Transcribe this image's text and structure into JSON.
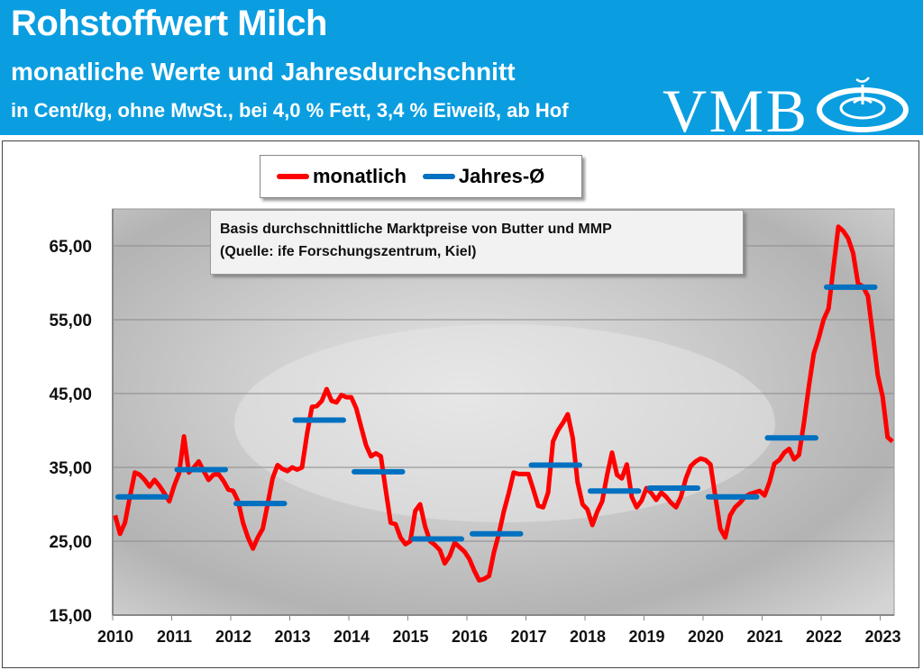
{
  "header": {
    "title": "Rohstoffwert Milch",
    "subtitle": "monatliche Werte und Jahresdurchschnitt",
    "subtitle2": "in Cent/kg, ohne MwSt., bei 4,0 % Fett, 3,4 % Eiweiß, ab Hof",
    "logo_text": "VMB",
    "color": "#0a9ee0"
  },
  "annotation": {
    "line1": "Basis durchschnittliche Marktpreise von Butter und MMP",
    "line2": "(Quelle: ife Forschungszentrum, Kiel)"
  },
  "chart_data": {
    "type": "line",
    "title": "Rohstoffwert Milch",
    "ylim": [
      15,
      70
    ],
    "yticks": [
      15,
      25,
      35,
      45,
      55,
      65
    ],
    "ytick_labels": [
      "15,00",
      "25,00",
      "35,00",
      "45,00",
      "55,00",
      "65,00"
    ],
    "xticks": [
      "2010",
      "2011",
      "2012",
      "2013",
      "2014",
      "2015",
      "2016",
      "2017",
      "2018",
      "2019",
      "2020",
      "2021",
      "2022",
      "2023"
    ],
    "x_range": [
      "2010-01",
      "2023-03"
    ],
    "grid": true,
    "legend": "top-center",
    "series": [
      {
        "name": "monatlich",
        "color": "#ff0000",
        "start": "2010-01",
        "frequency": "monthly",
        "values": [
          28.5,
          26,
          27.5,
          31,
          34.3,
          34,
          33.3,
          32.4,
          33.3,
          32.5,
          31.5,
          30.4,
          32.5,
          34.2,
          39.2,
          34.3,
          35,
          35.8,
          34.5,
          33.3,
          34,
          34.1,
          33.2,
          32,
          31.8,
          30.4,
          27.5,
          25.5,
          24,
          25.5,
          26.7,
          30,
          33.5,
          35.3,
          34.8,
          34.5,
          35,
          34.7,
          35,
          39.5,
          43.2,
          43.3,
          44,
          45.6,
          44,
          43.8,
          44.8,
          44.5,
          44.5,
          43,
          40.5,
          38,
          36.5,
          36.9,
          36.5,
          32,
          27.5,
          27.3,
          25.5,
          24.6,
          25,
          29.1,
          30,
          27,
          25,
          24.5,
          23.8,
          22,
          23,
          24.8,
          24.2,
          23.6,
          22.6,
          21,
          19.7,
          19.9,
          20.3,
          23.5,
          26,
          29,
          31.5,
          34.3,
          34.1,
          34.1,
          34.1,
          32,
          29.8,
          29.6,
          31.6,
          38.5,
          40,
          41,
          42.2,
          39,
          33,
          30,
          29.3,
          27.2,
          29,
          30.4,
          34,
          37,
          34,
          33.5,
          35.4,
          31,
          29.6,
          30.5,
          32.2,
          31.5,
          30.6,
          31.6,
          31,
          30.2,
          29.6,
          31,
          33.5,
          35.2,
          35.8,
          36.2,
          36,
          35.4,
          31.1,
          26.7,
          25.5,
          28.5,
          29.6,
          30.2,
          31,
          31.4,
          31.6,
          31.8,
          31.2,
          33,
          35.5,
          36,
          37,
          37.5,
          36.1,
          36.7,
          41,
          46,
          50.4,
          52.5,
          55,
          56.5,
          62,
          67.6,
          67,
          66,
          64,
          59.9,
          59.5,
          58.2,
          53,
          47.5,
          44.6,
          39.1,
          38.5
        ]
      },
      {
        "name": "Jahres-Ø",
        "color": "#0070c0",
        "years": [
          2010,
          2011,
          2012,
          2013,
          2014,
          2015,
          2016,
          2017,
          2018,
          2019,
          2020,
          2021,
          2022
        ],
        "values": [
          31.0,
          34.7,
          30.1,
          41.4,
          34.4,
          25.3,
          26.0,
          35.3,
          31.8,
          32.2,
          31.0,
          39.0,
          59.4
        ]
      }
    ]
  }
}
